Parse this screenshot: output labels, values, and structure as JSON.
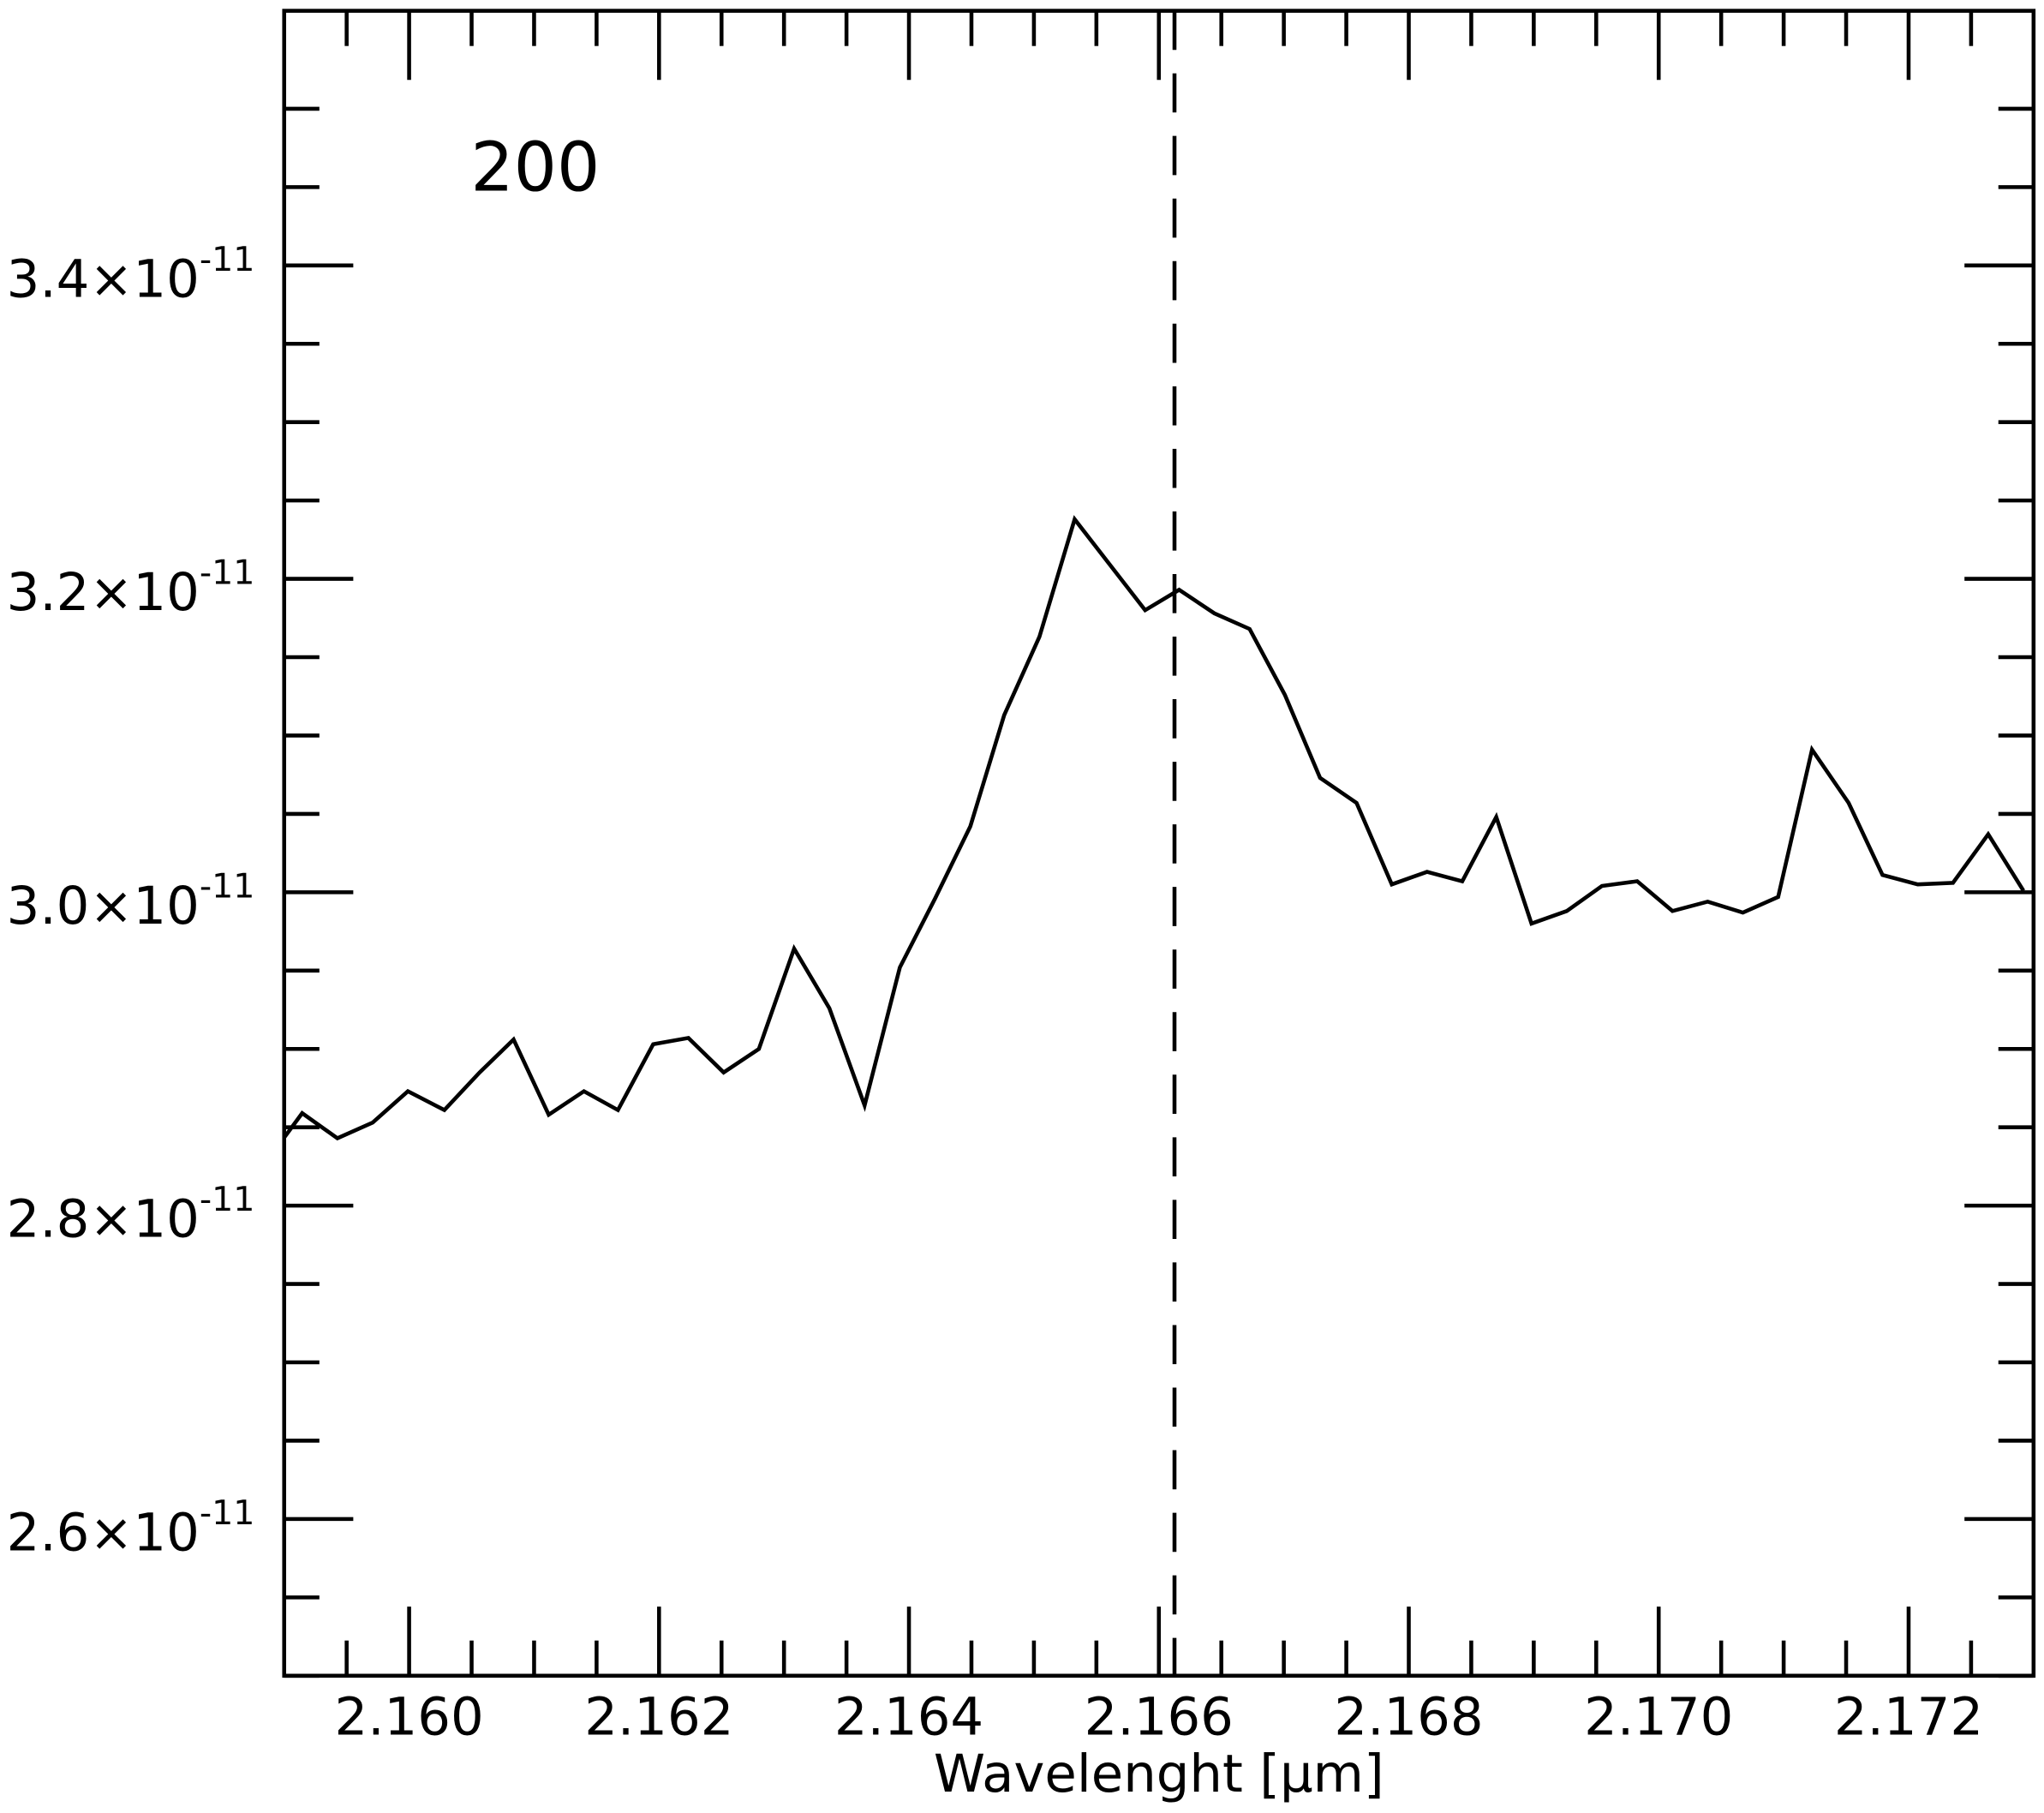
{
  "chart_data": {
    "type": "line",
    "x_label": "Wavelenght [μm]",
    "annotation": {
      "text": "200",
      "color": "#0000ff"
    },
    "vline": {
      "x": 2.166125,
      "style": "dashed",
      "color": "#000000"
    },
    "xlim": [
      2.159,
      2.173
    ],
    "ylim": [
      2.5e-11,
      3.5625e-11
    ],
    "xticks": [
      {
        "value": 2.16,
        "label": "2.160"
      },
      {
        "value": 2.162,
        "label": "2.162"
      },
      {
        "value": 2.164,
        "label": "2.164"
      },
      {
        "value": 2.166,
        "label": "2.166"
      },
      {
        "value": 2.168,
        "label": "2.168"
      },
      {
        "value": 2.17,
        "label": "2.170"
      },
      {
        "value": 2.172,
        "label": "2.172"
      }
    ],
    "xminorticks": [
      2.1595,
      2.1605,
      2.161,
      2.1615,
      2.1625,
      2.163,
      2.1635,
      2.1645,
      2.165,
      2.1655,
      2.1665,
      2.167,
      2.1675,
      2.1685,
      2.169,
      2.1695,
      2.1705,
      2.171,
      2.1715,
      2.1725
    ],
    "yticks": [
      {
        "value": 2.6e-11,
        "label": "2.6×10",
        "sup": "-11"
      },
      {
        "value": 2.8e-11,
        "label": "2.8×10",
        "sup": "-11"
      },
      {
        "value": 3e-11,
        "label": "3.0×10",
        "sup": "-11"
      },
      {
        "value": 3.2e-11,
        "label": "3.2×10",
        "sup": "-11"
      },
      {
        "value": 3.4e-11,
        "label": "3.4×10",
        "sup": "-11"
      }
    ],
    "yminorticks": [
      2.5e-11,
      2.55e-11,
      2.65e-11,
      2.7e-11,
      2.75e-11,
      2.85e-11,
      2.9e-11,
      2.95e-11,
      3.05e-11,
      3.1e-11,
      3.15e-11,
      3.25e-11,
      3.3e-11,
      3.35e-11,
      3.45e-11,
      3.5e-11
    ],
    "x": [
      2.158987,
      2.159144,
      2.159426,
      2.159708,
      2.15999,
      2.160282,
      2.160564,
      2.160836,
      2.161117,
      2.161399,
      2.161671,
      2.161953,
      2.162235,
      2.162517,
      2.162799,
      2.163081,
      2.163363,
      2.163645,
      2.163927,
      2.164209,
      2.164491,
      2.164762,
      2.165044,
      2.165326,
      2.165608,
      2.16589,
      2.166162,
      2.166444,
      2.166726,
      2.167008,
      2.16729,
      2.167582,
      2.167864,
      2.168146,
      2.168428,
      2.1687,
      2.168982,
      2.169264,
      2.169546,
      2.169828,
      2.17011,
      2.170392,
      2.170674,
      2.170956,
      2.171227,
      2.17152,
      2.171791,
      2.172073,
      2.172355,
      2.172637,
      2.172919
    ],
    "series": [
      {
        "color": "#000000",
        "values": [
          2.842e-11,
          2.859e-11,
          2.843e-11,
          2.853e-11,
          2.873e-11,
          2.861e-11,
          2.885e-11,
          2.906e-11,
          2.858e-11,
          2.873e-11,
          2.861e-11,
          2.903e-11,
          2.907e-11,
          2.885e-11,
          2.9e-11,
          2.964e-11,
          2.926e-11,
          2.864e-11,
          2.952e-11,
          2.996e-11,
          3.042e-11,
          3.113e-11,
          3.163e-11,
          3.238e-11,
          3.209e-11,
          3.18e-11,
          3.193e-11,
          3.178e-11,
          3.168e-11,
          3.126e-11,
          3.073e-11,
          3.057e-11,
          3.005e-11,
          3.013e-11,
          3.007e-11,
          3.048e-11,
          2.98e-11,
          2.988e-11,
          3.004e-11,
          3.007e-11,
          2.988e-11,
          2.994e-11,
          2.987e-11,
          2.997e-11,
          3.091e-11,
          3.057e-11,
          3.011e-11,
          3.005e-11,
          3.006e-11,
          3.037e-11,
          3.001e-11
        ]
      }
    ]
  }
}
